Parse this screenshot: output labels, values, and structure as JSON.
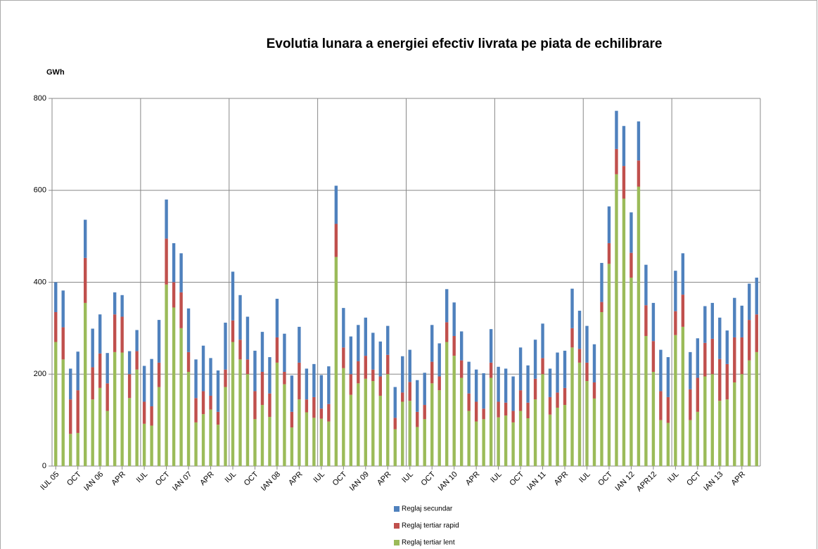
{
  "chart_data": {
    "type": "stacked-bar",
    "title": "Evolutia lunara a energiei efectiv livrata pe piata de echilibrare",
    "y_label": "GWh",
    "categories": [
      "IUL 05",
      null,
      null,
      "OCT",
      null,
      null,
      "IAN 06",
      null,
      null,
      "APR",
      null,
      null,
      "IUL",
      null,
      null,
      "OCT",
      null,
      null,
      "IAN 07",
      null,
      null,
      "APR",
      null,
      null,
      "IUL",
      null,
      null,
      "OCT",
      null,
      null,
      "IAN 08",
      null,
      null,
      "APR",
      null,
      null,
      "IUL",
      null,
      null,
      "OCT",
      null,
      null,
      "IAN 09",
      null,
      null,
      "APR",
      null,
      null,
      "IUL",
      null,
      null,
      "OCT",
      null,
      null,
      "IAN 10",
      null,
      null,
      "APR",
      null,
      null,
      "IUL",
      null,
      null,
      "OCT",
      null,
      null,
      "IAN 11",
      null,
      null,
      "APR",
      null,
      null,
      "IUL",
      null,
      null,
      "OCT",
      null,
      null,
      "IAN 12",
      null,
      null,
      "APR12",
      null,
      null,
      "IUL",
      null,
      null,
      "OCT",
      null,
      null,
      "IAN 13",
      null,
      null,
      "APR",
      null,
      null
    ],
    "series": [
      {
        "name": "Reglaj secundar",
        "color": "#4f81bd",
        "values": [
          65,
          80,
          67,
          84,
          83,
          84,
          85,
          66,
          48,
          47,
          50,
          46,
          78,
          103,
          93,
          85,
          85,
          85,
          95,
          84,
          99,
          82,
          90,
          102,
          106,
          97,
          93,
          88,
          87,
          79,
          84,
          83,
          79,
          78,
          67,
          72,
          73,
          82,
          83,
          86,
          82,
          79,
          83,
          80,
          76,
          63,
          67,
          79,
          70,
          69,
          70,
          80,
          72,
          72,
          73,
          63,
          69,
          70,
          77,
          73,
          76,
          74,
          75,
          93,
          81,
          85,
          75,
          62,
          87,
          81,
          86,
          83,
          80,
          83,
          85,
          80,
          83,
          87,
          88,
          85,
          88,
          83,
          90,
          87,
          88,
          90,
          81,
          86,
          80,
          78,
          90,
          73,
          86,
          69,
          79,
          80
        ]
      },
      {
        "name": "Reglaj tertiar rapid",
        "color": "#c0504d",
        "values": [
          65,
          70,
          75,
          93,
          98,
          70,
          75,
          60,
          82,
          78,
          52,
          40,
          48,
          42,
          53,
          100,
          55,
          78,
          43,
          53,
          50,
          30,
          28,
          38,
          47,
          43,
          32,
          61,
          72,
          51,
          55,
          27,
          34,
          80,
          28,
          45,
          22,
          38,
          72,
          45,
          45,
          48,
          50,
          25,
          42,
          42,
          25,
          20,
          41,
          33,
          31,
          47,
          30,
          43,
          43,
          38,
          38,
          43,
          23,
          33,
          34,
          28,
          25,
          45,
          34,
          45,
          35,
          38,
          33,
          37,
          42,
          30,
          40,
          35,
          22,
          45,
          55,
          71,
          54,
          57,
          67,
          67,
          63,
          56,
          52,
          70,
          67,
          74,
          73,
          77,
          91,
          77,
          98,
          80,
          88,
          82
        ]
      },
      {
        "name": "Reglaj tertiar lent",
        "color": "#9bbb59",
        "values": [
          270,
          232,
          70,
          72,
          355,
          145,
          170,
          120,
          248,
          247,
          148,
          210,
          92,
          88,
          172,
          395,
          345,
          300,
          205,
          95,
          113,
          123,
          90,
          172,
          270,
          232,
          200,
          102,
          133,
          107,
          225,
          178,
          84,
          145,
          117,
          105,
          103,
          97,
          455,
          213,
          155,
          180,
          190,
          185,
          153,
          200,
          80,
          140,
          142,
          85,
          102,
          180,
          165,
          270,
          240,
          192,
          120,
          97,
          102,
          192,
          106,
          110,
          95,
          120,
          104,
          145,
          200,
          112,
          127,
          133,
          258,
          225,
          185,
          147,
          335,
          440,
          635,
          582,
          410,
          608,
          283,
          205,
          100,
          94,
          285,
          303,
          100,
          118,
          195,
          200,
          142,
          145,
          182,
          200,
          230,
          248
        ]
      }
    ],
    "ylim": [
      0,
      800
    ],
    "yticks": [
      0,
      200,
      400,
      600,
      800
    ],
    "grid": true
  }
}
